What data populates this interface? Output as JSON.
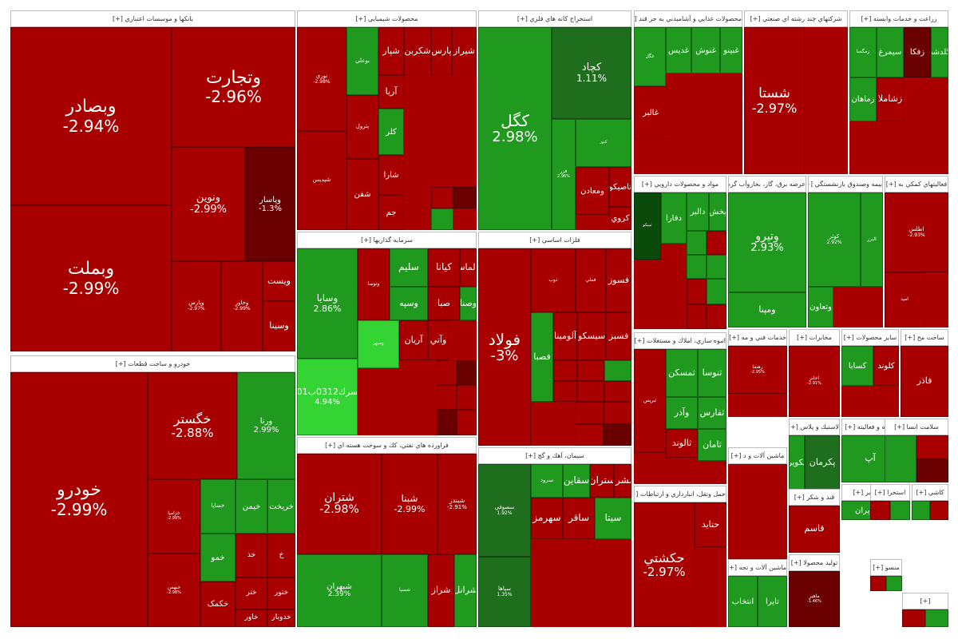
{
  "chart_data": {
    "type": "treemap",
    "colors": {
      "deep_red": "#a80000",
      "red": "#c01818",
      "dark_red": "#6a0000",
      "maroon": "#4a0000",
      "green": "#1f9a1f",
      "bright_green": "#33d433",
      "dark_green": "#1e6e1e",
      "deepest_green": "#0a4a0a"
    },
    "sectors": [
      {
        "name": "بانکها و موسسات اعتباري [+]",
        "tiles": [
          {
            "symbol": "وبصادر",
            "change": "-2.94%",
            "value": -2.94
          },
          {
            "symbol": "وبملت",
            "change": "-2.99%",
            "value": -2.99
          },
          {
            "symbol": "وتجارت",
            "change": "-2.96%",
            "value": -2.96
          },
          {
            "symbol": "ونوين",
            "change": "-2.99%",
            "value": -2.99
          },
          {
            "symbol": "وپاسار",
            "change": "-1.3%",
            "value": -1.3
          },
          {
            "symbol": "وپارس",
            "change": "-2.97%",
            "value": -2.97
          },
          {
            "symbol": "وخاور",
            "change": "-2.99%",
            "value": -2.99
          },
          {
            "symbol": "ويست",
            "change": ""
          },
          {
            "symbol": "وسينا",
            "change": ""
          }
        ]
      },
      {
        "name": "خودرو و ساخت قطعات [+]",
        "tiles": [
          {
            "symbol": "خودرو",
            "change": "-2.99%",
            "value": -2.99
          },
          {
            "symbol": "خگستر",
            "change": "-2.88%",
            "value": -2.88
          },
          {
            "symbol": "ورنا",
            "change": "2.99%",
            "value": 2.99
          },
          {
            "symbol": "خزامیا",
            "change": "-2.99%",
            "value": -2.99
          },
          {
            "symbol": "خبهمن",
            "change": "-2.98%",
            "value": -2.98
          },
          {
            "symbol": "خساپا",
            "change": ""
          },
          {
            "symbol": "خيمن",
            "change": ""
          },
          {
            "symbol": "خريخت",
            "change": ""
          },
          {
            "symbol": "خمو",
            "change": ""
          },
          {
            "symbol": "خذ",
            "change": ""
          },
          {
            "symbol": "خ",
            "change": ""
          },
          {
            "symbol": "ختور",
            "change": ""
          },
          {
            "symbol": "ختر",
            "change": ""
          },
          {
            "symbol": "خکمک",
            "change": ""
          },
          {
            "symbol": "خاور",
            "change": ""
          },
          {
            "symbol": "خدوبار",
            "change": ""
          }
        ]
      },
      {
        "name": "محصولات شيميايي [+]",
        "tiles": [
          {
            "symbol": "نوري",
            "change": "-2.98%",
            "value": -2.98
          },
          {
            "symbol": "شپديس",
            "change": ""
          },
          {
            "symbol": "بوعلي",
            "change": ""
          },
          {
            "symbol": "پترول",
            "change": ""
          },
          {
            "symbol": "شفن",
            "change": ""
          },
          {
            "symbol": "شپار",
            "change": ""
          },
          {
            "symbol": "شکربن",
            "change": ""
          },
          {
            "symbol": "پارس",
            "change": ""
          },
          {
            "symbol": "شيراز",
            "change": ""
          },
          {
            "symbol": "آريا",
            "change": ""
          },
          {
            "symbol": "کلر",
            "change": ""
          },
          {
            "symbol": "شارا",
            "change": ""
          },
          {
            "symbol": "جم",
            "change": ""
          }
        ]
      },
      {
        "name": "استخراج کانه هاي فلزي [+]",
        "tiles": [
          {
            "symbol": "کگل",
            "change": "2.98%",
            "value": 2.98
          },
          {
            "symbol": "کچاد",
            "change": "1.11%",
            "value": 1.11
          },
          {
            "symbol": "فزر",
            "change": "2.96%",
            "value": 2.96
          },
          {
            "symbol": "کنور",
            "change": ""
          },
          {
            "symbol": "ومعادن",
            "change": ""
          },
          {
            "symbol": "تاصيکو",
            "change": ""
          },
          {
            "symbol": "کروي",
            "change": ""
          }
        ]
      },
      {
        "name": "محصولات غذايي و آشاميدني به جز قند [+]",
        "tiles": [
          {
            "symbol": "غگل",
            "change": ""
          },
          {
            "symbol": "غديس",
            "change": ""
          },
          {
            "symbol": "غنوش",
            "change": ""
          },
          {
            "symbol": "غبينو",
            "change": ""
          },
          {
            "symbol": "غالبر",
            "change": ""
          }
        ]
      },
      {
        "name": "شرکتهاي چند رشته اي صنعتي [+]",
        "tiles": [
          {
            "symbol": "شستا",
            "change": "-2.97%",
            "value": -2.97
          }
        ]
      },
      {
        "name": "زراعت و خدمات وابسته [+]",
        "tiles": [
          {
            "symbol": "زمگسا",
            "change": ""
          },
          {
            "symbol": "سيمرغ",
            "change": ""
          },
          {
            "symbol": "زفکا",
            "change": ""
          },
          {
            "symbol": "زگلدشت",
            "change": ""
          },
          {
            "symbol": "زماهان",
            "change": ""
          },
          {
            "symbol": "زشاملا",
            "change": ""
          }
        ]
      },
      {
        "name": "سرمايه گذاريها [+]",
        "tiles": [
          {
            "symbol": "وسايا",
            "change": "2.86%",
            "value": 2.86
          },
          {
            "symbol": "سرك0312ب01",
            "change": "4.94%",
            "value": 4.94
          },
          {
            "symbol": "وتوصا",
            "change": ""
          },
          {
            "symbol": "سليم",
            "change": ""
          },
          {
            "symbol": "كيانا",
            "change": ""
          },
          {
            "symbol": "والماس",
            "change": ""
          },
          {
            "symbol": "وسپه",
            "change": ""
          },
          {
            "symbol": "صبا",
            "change": ""
          },
          {
            "symbol": "وصنا",
            "change": ""
          },
          {
            "symbol": "وسپهر",
            "change": ""
          },
          {
            "symbol": "آريان",
            "change": ""
          },
          {
            "symbol": "وآتي",
            "change": ""
          }
        ]
      },
      {
        "name": "فراورده هاي نفتي، كك و سوخت هسته اي [+]",
        "tiles": [
          {
            "symbol": "شتران",
            "change": "-2.98%",
            "value": -2.98
          },
          {
            "symbol": "شبنا",
            "change": "-2.99%",
            "value": -2.99
          },
          {
            "symbol": "شبندر",
            "change": "-2.91%",
            "value": -2.91
          },
          {
            "symbol": "شبهران",
            "change": "2.39%",
            "value": 2.39
          },
          {
            "symbol": "شسپا",
            "change": ""
          },
          {
            "symbol": "شراز",
            "change": ""
          },
          {
            "symbol": "شرانل",
            "change": ""
          }
        ]
      },
      {
        "name": "فلزات اساسي [+]",
        "tiles": [
          {
            "symbol": "فولاد",
            "change": "-3%",
            "value": -3
          },
          {
            "symbol": "ذوب",
            "change": ""
          },
          {
            "symbol": "فملي",
            "change": ""
          },
          {
            "symbol": "فسوز",
            "change": ""
          },
          {
            "symbol": "فصبا",
            "change": ""
          },
          {
            "symbol": "آلومينا",
            "change": ""
          },
          {
            "symbol": "سيسکو",
            "change": ""
          },
          {
            "symbol": "فسبز",
            "change": ""
          }
        ]
      },
      {
        "name": "سيمان، آهك و گچ [+]",
        "tiles": [
          {
            "symbol": "سصوفي",
            "change": "1.92%",
            "value": 1.92
          },
          {
            "symbol": "سپاها",
            "change": "1.35%",
            "value": 1.35
          },
          {
            "symbol": "سرود",
            "change": ""
          },
          {
            "symbol": "سهرمز",
            "change": ""
          },
          {
            "symbol": "سقاين",
            "change": ""
          },
          {
            "symbol": "ستران",
            "change": ""
          },
          {
            "symbol": "سشرق",
            "change": ""
          },
          {
            "symbol": "ساقر",
            "change": ""
          },
          {
            "symbol": "سيتا",
            "change": ""
          }
        ]
      },
      {
        "name": "مواد و محصولات دارويي [+]",
        "tiles": [
          {
            "symbol": "تيپيكو",
            "change": ""
          },
          {
            "symbol": "دفارا",
            "change": ""
          },
          {
            "symbol": "دالبر",
            "change": ""
          },
          {
            "symbol": "پخش",
            "change": ""
          }
        ]
      },
      {
        "name": "انبوه سازي، املاك و مستغلات [+]",
        "tiles": [
          {
            "symbol": "ثبريس",
            "change": ""
          },
          {
            "symbol": "ثمسكن",
            "change": ""
          },
          {
            "symbol": "ثنوسا",
            "change": ""
          },
          {
            "symbol": "وآذر",
            "change": ""
          },
          {
            "symbol": "ثفارس",
            "change": ""
          },
          {
            "symbol": "ثالوند",
            "change": ""
          },
          {
            "symbol": "ثامان",
            "change": ""
          }
        ]
      },
      {
        "name": "حمل ونقل، انبارداري و ارتباطات [+]",
        "tiles": [
          {
            "symbol": "حكشتي",
            "change": "-2.97%",
            "value": -2.97
          },
          {
            "symbol": "حتايد",
            "change": ""
          }
        ]
      },
      {
        "name": "عرضه برق، گاز، بخاروآب گرم [+]",
        "tiles": [
          {
            "symbol": "وتيرو",
            "change": "2.93%",
            "value": 2.93
          },
          {
            "symbol": "ومپنا",
            "change": ""
          }
        ]
      },
      {
        "name": "بيمه وصندوق بازنشستگي [+]",
        "tiles": [
          {
            "symbol": "کوثر",
            "change": "2.92%",
            "value": 2.92
          },
          {
            "symbol": "البرز",
            "change": ""
          },
          {
            "symbol": "وتعاون",
            "change": ""
          }
        ]
      },
      {
        "name": "فعاليتهاي كمكي به [+]",
        "tiles": [
          {
            "symbol": "اطلس",
            "change": "-2.93%",
            "value": -2.93
          },
          {
            "symbol": "اميد",
            "change": ""
          }
        ]
      },
      {
        "name": "خدمات فني و مه [+]",
        "tiles": [
          {
            "symbol": "رهنما",
            "change": "-2.95%",
            "value": -2.95
          }
        ]
      },
      {
        "name": "مخابرات [+]",
        "tiles": [
          {
            "symbol": "اخابر",
            "change": "-2.91%",
            "value": -2.91
          }
        ]
      },
      {
        "name": "ساير محصولات [+]",
        "tiles": [
          {
            "symbol": "کسابا",
            "change": ""
          },
          {
            "symbol": "کلوند",
            "change": ""
          }
        ]
      },
      {
        "name": "ساخت مح [+]",
        "tiles": [
          {
            "symbol": "فاذر",
            "change": ""
          }
        ]
      },
      {
        "name": "لاستيك و پلاس [+]",
        "tiles": [
          {
            "symbol": "پکوير",
            "change": ""
          },
          {
            "symbol": "پکرمان",
            "change": ""
          },
          {
            "symbol": "پتاير",
            "change": ""
          }
        ]
      },
      {
        "name": "رايانه و فعاليته [+]",
        "tiles": [
          {
            "symbol": "آپ",
            "change": ""
          }
        ]
      },
      {
        "name": "سلامت انسا [+]",
        "tiles": []
      },
      {
        "name": "ماشين آلات و د [+]",
        "tiles": []
      },
      {
        "name": "قند و شكر [+]",
        "tiles": [
          {
            "symbol": "قاسم",
            "change": ""
          }
        ]
      },
      {
        "name": "ماشين آلات و تجه [+]",
        "tiles": [
          {
            "symbol": "انتخاب",
            "change": ""
          },
          {
            "symbol": "تايرا",
            "change": ""
          }
        ]
      },
      {
        "name": "توليد محصولا [+]",
        "tiles": [
          {
            "symbol": "ماهير",
            "change": "-1.46%",
            "value": -1.46
          }
        ]
      },
      {
        "name": "ساير [+]",
        "tiles": [
          {
            "symbol": "واپران",
            "change": ""
          }
        ]
      },
      {
        "name": "استخرا [+]",
        "tiles": []
      },
      {
        "name": "کاشي [+]",
        "tiles": []
      },
      {
        "name": "منسو [+]",
        "tiles": []
      },
      {
        "name": "[+]",
        "tiles": []
      }
    ]
  }
}
